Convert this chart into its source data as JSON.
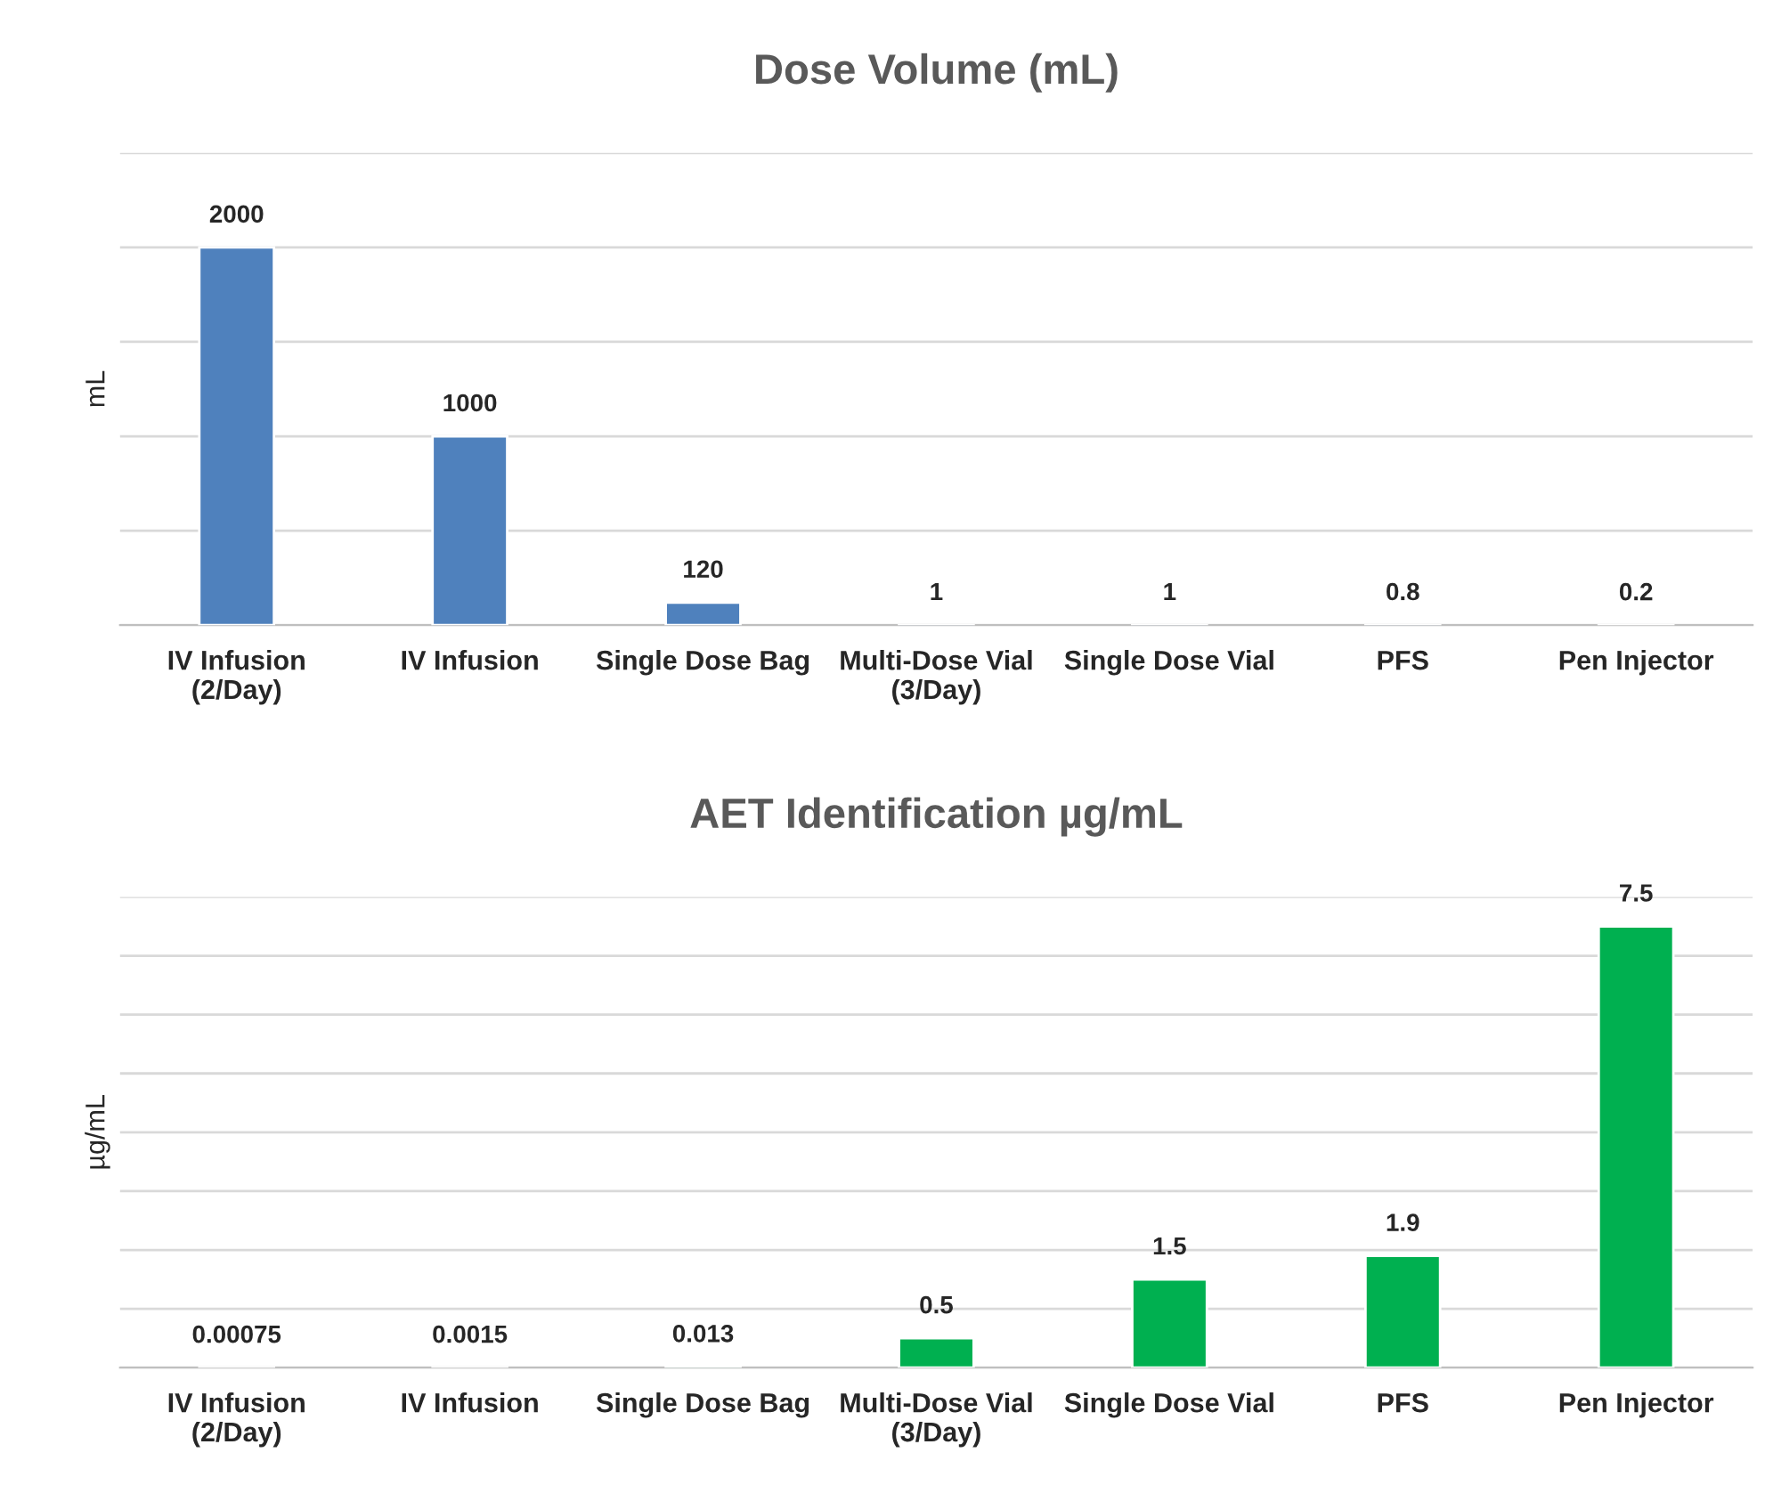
{
  "chart_data": [
    {
      "type": "bar",
      "title": "Dose Volume (mL)",
      "ylabel": "mL",
      "categories": [
        "IV Infusion\n(2/Day)",
        "IV Infusion",
        "Single Dose Bag",
        "Multi-Dose Vial\n(3/Day)",
        "Single Dose Vial",
        "PFS",
        "Pen Injector"
      ],
      "series": [
        {
          "color": "#4f81bd",
          "values": [
            2000,
            1000,
            120,
            1,
            1,
            0.8,
            0.2
          ]
        }
      ],
      "ylim": [
        0,
        2500
      ],
      "yticks": [
        {
          "value": 0,
          "label": null
        },
        {
          "value": 500,
          "label": null
        },
        {
          "value": 1000,
          "label": null
        },
        {
          "value": 1500,
          "label": null
        },
        {
          "value": 2000,
          "label": null
        },
        {
          "value": 2500,
          "label": null
        }
      ],
      "tick_labels": "x",
      "grid": "y",
      "data_labels": true
    },
    {
      "type": "bar",
      "title": "AET Identification µg/mL",
      "ylabel": "µg/mL",
      "categories": [
        "IV Infusion\n(2/Day)",
        "IV Infusion",
        "Single Dose Bag",
        "Multi-Dose Vial\n(3/Day)",
        "Single Dose Vial",
        "PFS",
        "Pen Injector"
      ],
      "series": [
        {
          "color": "#00b050",
          "values": [
            0.00075,
            0.0015,
            0.013,
            0.5,
            1.5,
            1.9,
            7.5
          ]
        }
      ],
      "ylim": [
        0,
        8
      ],
      "yticks": [
        {
          "value": 0,
          "label": null
        },
        {
          "value": 1,
          "label": null
        },
        {
          "value": 2,
          "label": null
        },
        {
          "value": 3,
          "label": null
        },
        {
          "value": 4,
          "label": null
        },
        {
          "value": 5,
          "label": null
        },
        {
          "value": 6,
          "label": null
        },
        {
          "value": 7,
          "label": null
        },
        {
          "value": 8,
          "label": null
        }
      ],
      "tick_labels": "x",
      "grid": "y",
      "data_labels": true
    }
  ]
}
